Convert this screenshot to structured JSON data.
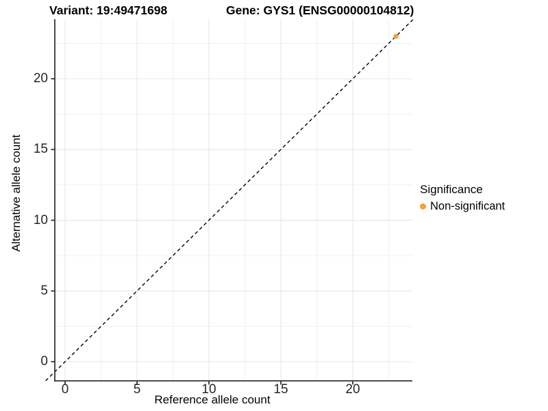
{
  "chart_data": {
    "type": "scatter",
    "titles": {
      "left": "Variant: 19:49471698",
      "right": "Gene: GYS1 (ENSG00000104812)"
    },
    "xlabel": "Reference allele count",
    "ylabel": "Alternative allele count",
    "x_ticks": [
      0,
      5,
      10,
      15,
      20
    ],
    "y_ticks": [
      0,
      5,
      10,
      15,
      20
    ],
    "x_minor": [
      2.5,
      7.5,
      12.5,
      17.5,
      22.5
    ],
    "y_minor": [
      2.5,
      7.5,
      12.5,
      17.5,
      22.5
    ],
    "xlim": [
      -0.7,
      24.1
    ],
    "ylim": [
      -1.35,
      24.2
    ],
    "grid": true,
    "legend_position": "right",
    "points": [
      {
        "x": 23,
        "y": 23,
        "series": "Non-significant"
      }
    ],
    "reference_line": {
      "style": "dashed",
      "slope": 1,
      "intercept": 0,
      "from": -1.35,
      "to": 24.2
    },
    "legend": {
      "title": "Significance",
      "items": [
        {
          "label": "Non-significant",
          "color": "#F9A12B"
        }
      ]
    },
    "colors": {
      "point": "#F9A12B",
      "grid_major": "#E4E4E4",
      "grid_minor": "#F0F0F0",
      "axis_line": "#333333",
      "reference_line": "#000000"
    }
  }
}
